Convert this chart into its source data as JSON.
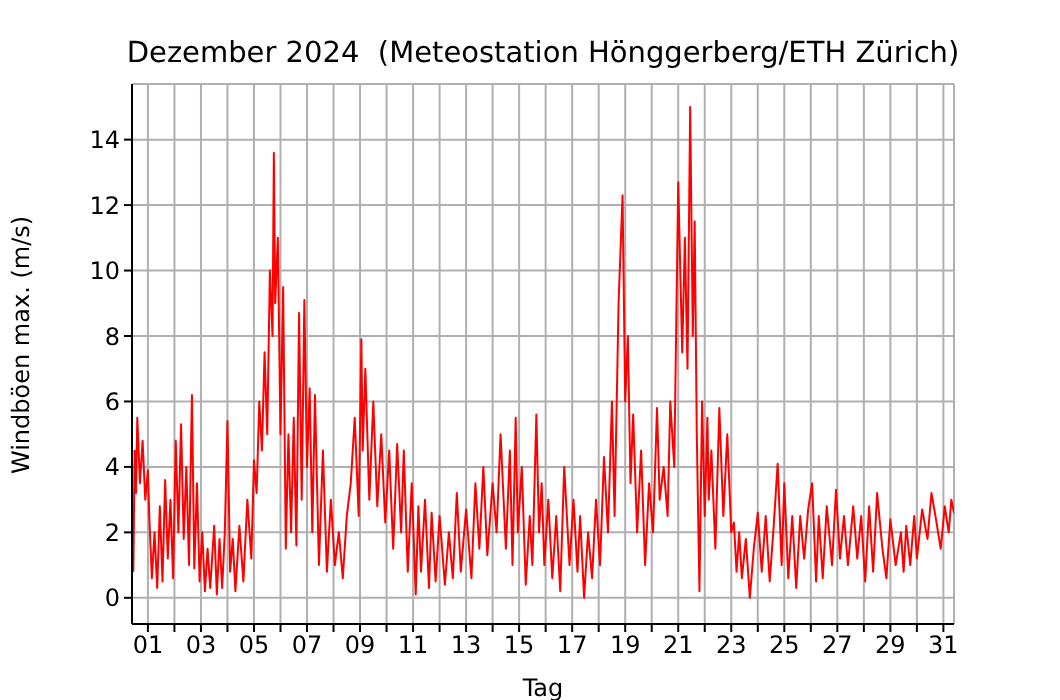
{
  "chart_data": {
    "type": "line",
    "title": "Dezember 2024  (Meteostation Hönggerberg/ETH Zürich)",
    "xlabel": "Tag",
    "ylabel": "Windböen max. (m/s)",
    "x": [
      0.45,
      0.5,
      0.55,
      0.6,
      0.7,
      0.8,
      0.9,
      1.0,
      1.05,
      1.15,
      1.25,
      1.35,
      1.45,
      1.55,
      1.65,
      1.75,
      1.85,
      1.95,
      2.05,
      2.15,
      2.25,
      2.35,
      2.45,
      2.55,
      2.66,
      2.75,
      2.85,
      2.95,
      3.05,
      3.15,
      3.25,
      3.35,
      3.5,
      3.6,
      3.7,
      3.8,
      3.9,
      4.0,
      4.1,
      4.2,
      4.3,
      4.45,
      4.6,
      4.75,
      4.9,
      5.0,
      5.1,
      5.2,
      5.3,
      5.4,
      5.5,
      5.6,
      5.7,
      5.75,
      5.8,
      5.9,
      6.0,
      6.1,
      6.2,
      6.3,
      6.4,
      6.5,
      6.6,
      6.7,
      6.8,
      6.9,
      7.0,
      7.1,
      7.2,
      7.3,
      7.45,
      7.6,
      7.75,
      7.9,
      8.05,
      8.2,
      8.35,
      8.5,
      8.65,
      8.8,
      8.95,
      9.05,
      9.1,
      9.2,
      9.35,
      9.5,
      9.65,
      9.8,
      9.95,
      10.1,
      10.25,
      10.4,
      10.55,
      10.65,
      10.8,
      10.95,
      11.1,
      11.2,
      11.3,
      11.45,
      11.6,
      11.7,
      11.85,
      12.0,
      12.2,
      12.35,
      12.5,
      12.65,
      12.8,
      13.0,
      13.2,
      13.35,
      13.5,
      13.65,
      13.8,
      14.0,
      14.15,
      14.3,
      14.5,
      14.65,
      14.75,
      14.87,
      14.95,
      15.1,
      15.25,
      15.4,
      15.5,
      15.65,
      15.75,
      15.85,
      15.95,
      16.1,
      16.25,
      16.4,
      16.55,
      16.7,
      16.9,
      17.05,
      17.2,
      17.3,
      17.45,
      17.6,
      17.75,
      17.9,
      18.05,
      18.2,
      18.35,
      18.5,
      18.6,
      18.75,
      18.9,
      19.0,
      19.1,
      19.2,
      19.3,
      19.45,
      19.6,
      19.75,
      19.9,
      20.05,
      20.2,
      20.3,
      20.45,
      20.6,
      20.7,
      20.85,
      21.0,
      21.15,
      21.25,
      21.35,
      21.45,
      21.55,
      21.62,
      21.7,
      21.8,
      21.9,
      22.0,
      22.1,
      22.15,
      22.25,
      22.4,
      22.55,
      22.7,
      22.85,
      23.0,
      23.1,
      23.2,
      23.3,
      23.4,
      23.55,
      23.7,
      23.85,
      24.0,
      24.15,
      24.3,
      24.45,
      24.6,
      24.75,
      24.9,
      25.0,
      25.15,
      25.3,
      25.45,
      25.6,
      25.75,
      25.9,
      26.05,
      26.2,
      26.3,
      26.45,
      26.6,
      26.8,
      26.95,
      27.1,
      27.25,
      27.4,
      27.6,
      27.75,
      27.9,
      28.05,
      28.2,
      28.35,
      28.5,
      28.7,
      28.85,
      29.0,
      29.2,
      29.4,
      29.5,
      29.6,
      29.75,
      29.9,
      30.0,
      30.2,
      30.4,
      30.55,
      30.7,
      30.9,
      31.05,
      31.2,
      31.3,
      31.4
    ],
    "series": [
      {
        "color": "#ff0000",
        "values": [
          0.8,
          4.5,
          3.2,
          5.5,
          3.5,
          4.8,
          3.0,
          3.9,
          2.5,
          0.6,
          2.0,
          0.3,
          2.8,
          0.5,
          3.6,
          1.2,
          3.0,
          0.6,
          4.8,
          2.0,
          5.3,
          1.8,
          4.0,
          1.0,
          6.2,
          0.9,
          3.5,
          0.5,
          2.0,
          0.2,
          1.5,
          0.3,
          2.2,
          0.1,
          1.8,
          0.3,
          2.0,
          5.4,
          0.8,
          1.8,
          0.2,
          2.2,
          0.5,
          3.0,
          1.2,
          4.2,
          3.2,
          6.0,
          4.5,
          7.5,
          5.0,
          10.0,
          8.0,
          13.6,
          9.0,
          11.0,
          5.0,
          9.5,
          1.5,
          5.0,
          2.0,
          5.5,
          1.6,
          8.7,
          3.0,
          9.1,
          4.0,
          6.4,
          2.0,
          6.2,
          1.0,
          4.5,
          0.8,
          3.0,
          1.0,
          2.0,
          0.6,
          2.5,
          3.5,
          5.5,
          2.5,
          7.9,
          4.5,
          7.0,
          3.0,
          6.0,
          2.8,
          5.0,
          2.3,
          4.5,
          1.5,
          4.7,
          2.0,
          4.5,
          0.8,
          3.5,
          0.1,
          2.8,
          0.8,
          3.0,
          0.3,
          2.6,
          0.5,
          2.5,
          0.4,
          2.0,
          0.6,
          3.2,
          0.8,
          2.7,
          0.6,
          3.5,
          1.5,
          4.0,
          1.3,
          3.5,
          2.0,
          5.0,
          1.5,
          4.5,
          1.0,
          5.5,
          2.0,
          4.0,
          0.4,
          2.5,
          1.0,
          5.6,
          2.0,
          3.5,
          1.0,
          3.0,
          0.6,
          2.5,
          0.2,
          4.0,
          1.0,
          3.0,
          0.8,
          2.5,
          0.0,
          2.0,
          0.6,
          3.0,
          1.0,
          4.3,
          2.0,
          6.0,
          2.5,
          9.0,
          12.3,
          6.0,
          8.0,
          3.5,
          5.6,
          2.0,
          4.5,
          1.0,
          3.5,
          2.0,
          5.8,
          3.0,
          4.0,
          2.5,
          6.0,
          4.0,
          12.7,
          7.5,
          11.0,
          7.0,
          15.0,
          8.0,
          11.5,
          5.0,
          0.2,
          6.0,
          2.5,
          5.5,
          3.0,
          4.5,
          1.5,
          5.8,
          2.5,
          5.0,
          2.0,
          2.3,
          0.8,
          2.0,
          0.6,
          1.8,
          0.0,
          1.5,
          2.6,
          0.8,
          2.5,
          0.5,
          2.2,
          4.1,
          1.0,
          3.5,
          0.6,
          2.5,
          0.3,
          2.5,
          1.2,
          2.7,
          3.5,
          0.5,
          2.5,
          0.6,
          2.8,
          1.0,
          3.3,
          1.2,
          2.5,
          1.0,
          2.8,
          1.2,
          2.5,
          0.5,
          2.8,
          0.8,
          3.2,
          1.5,
          0.6,
          2.4,
          1.0,
          2.0,
          0.8,
          2.2,
          1.0,
          2.5,
          1.2,
          2.7,
          1.8,
          3.2,
          2.5,
          1.5,
          2.8,
          2.0,
          3.0,
          2.6
        ]
      }
    ],
    "xlim": [
      0.4,
      31.4
    ],
    "xticks": [
      {
        "value": 1,
        "label": "01"
      },
      {
        "value": 2,
        "label": null
      },
      {
        "value": 3,
        "label": "03"
      },
      {
        "value": 4,
        "label": null
      },
      {
        "value": 5,
        "label": "05"
      },
      {
        "value": 6,
        "label": null
      },
      {
        "value": 7,
        "label": "07"
      },
      {
        "value": 8,
        "label": null
      },
      {
        "value": 9,
        "label": "09"
      },
      {
        "value": 10,
        "label": null
      },
      {
        "value": 11,
        "label": "11"
      },
      {
        "value": 12,
        "label": null
      },
      {
        "value": 13,
        "label": "13"
      },
      {
        "value": 14,
        "label": null
      },
      {
        "value": 15,
        "label": "15"
      },
      {
        "value": 16,
        "label": null
      },
      {
        "value": 17,
        "label": "17"
      },
      {
        "value": 18,
        "label": null
      },
      {
        "value": 19,
        "label": "19"
      },
      {
        "value": 20,
        "label": null
      },
      {
        "value": 21,
        "label": "21"
      },
      {
        "value": 22,
        "label": null
      },
      {
        "value": 23,
        "label": "23"
      },
      {
        "value": 24,
        "label": null
      },
      {
        "value": 25,
        "label": "25"
      },
      {
        "value": 26,
        "label": null
      },
      {
        "value": 27,
        "label": "27"
      },
      {
        "value": 28,
        "label": null
      },
      {
        "value": 29,
        "label": "29"
      },
      {
        "value": 30,
        "label": null
      },
      {
        "value": 31,
        "label": "31"
      }
    ],
    "ylim": [
      -0.8,
      15.7
    ],
    "yticks": [
      0,
      2,
      4,
      6,
      8,
      10,
      12,
      14
    ],
    "grid": true,
    "marker": "none",
    "line_style": "solid"
  }
}
